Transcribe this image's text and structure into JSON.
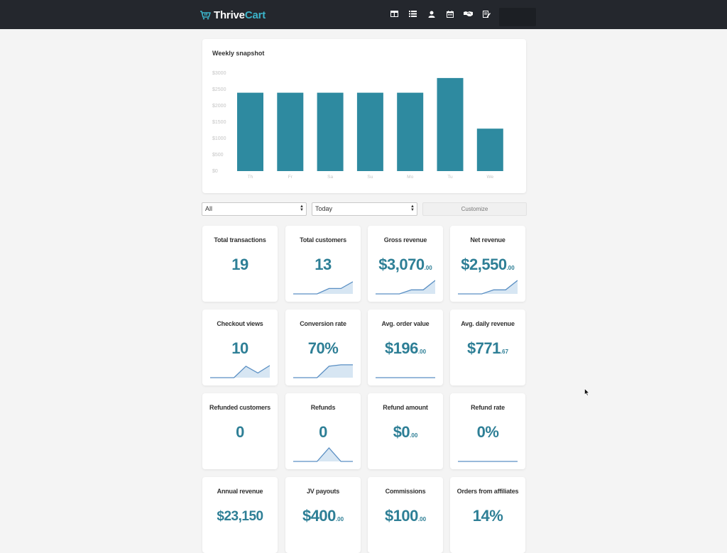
{
  "header": {
    "logo_part1": "Thrive",
    "logo_part2": "Cart",
    "nav_icons": [
      "dashboard-icon",
      "list-icon",
      "user-icon",
      "calendar-icon",
      "handshake-icon",
      "edit-icon"
    ]
  },
  "chart_data": {
    "type": "bar",
    "title": "Weekly snapshot",
    "categories": [
      "Th",
      "Fr",
      "Sa",
      "Su",
      "Mo",
      "Tu",
      "We"
    ],
    "values": [
      2400,
      2400,
      2400,
      2400,
      2400,
      2850,
      1300
    ],
    "yticks": [
      "$3000",
      "$2500",
      "$2000",
      "$1500",
      "$1000",
      "$500",
      "$0"
    ],
    "ylim": [
      0,
      3000
    ],
    "bar_color": "#2e8aa0",
    "grid": false
  },
  "filters": {
    "type_select": "All",
    "period_select": "Today",
    "customize_label": "Customize"
  },
  "stats": [
    {
      "label": "Total transactions",
      "value": "19",
      "cents": "",
      "spark": null
    },
    {
      "label": "Total customers",
      "value": "13",
      "cents": "",
      "spark": [
        0,
        0,
        0,
        0.4,
        0.4,
        0.9
      ]
    },
    {
      "label": "Gross revenue",
      "value": "$3,070",
      "cents": ".00",
      "spark": [
        0,
        0,
        0,
        0.3,
        0.3,
        1
      ]
    },
    {
      "label": "Net revenue",
      "value": "$2,550",
      "cents": ".00",
      "spark": [
        0,
        0,
        0,
        0.3,
        0.3,
        1
      ]
    },
    {
      "label": "Checkout views",
      "value": "10",
      "cents": "",
      "spark": [
        0,
        0,
        0,
        0.85,
        0.35,
        0.9
      ]
    },
    {
      "label": "Conversion rate",
      "value": "70%",
      "cents": "",
      "spark": [
        0,
        0,
        0,
        0.85,
        0.95,
        0.95
      ]
    },
    {
      "label": "Avg. order value",
      "value": "$196",
      "cents": ".00",
      "spark": [
        0,
        0,
        0,
        0,
        0,
        0
      ]
    },
    {
      "label": "Avg. daily revenue",
      "value": "$771",
      "cents": ".67",
      "spark": null
    },
    {
      "label": "Refunded customers",
      "value": "0",
      "cents": "",
      "spark": null
    },
    {
      "label": "Refunds",
      "value": "0",
      "cents": "",
      "spark": [
        0,
        0,
        0,
        1,
        0,
        0
      ]
    },
    {
      "label": "Refund amount",
      "value": "$0",
      "cents": ".00",
      "spark": null
    },
    {
      "label": "Refund rate",
      "value": "0%",
      "cents": "",
      "spark": [
        0,
        0,
        0,
        0,
        0,
        0
      ]
    },
    {
      "label": "Annual revenue",
      "value": "$23,150",
      "cents": "",
      "spark": null
    },
    {
      "label": "JV payouts",
      "value": "$400",
      "cents": ".00",
      "spark": null
    },
    {
      "label": "Commissions",
      "value": "$100",
      "cents": ".00",
      "spark": null
    },
    {
      "label": "Orders from affiliates",
      "value": "14%",
      "cents": "",
      "spark": null
    }
  ]
}
